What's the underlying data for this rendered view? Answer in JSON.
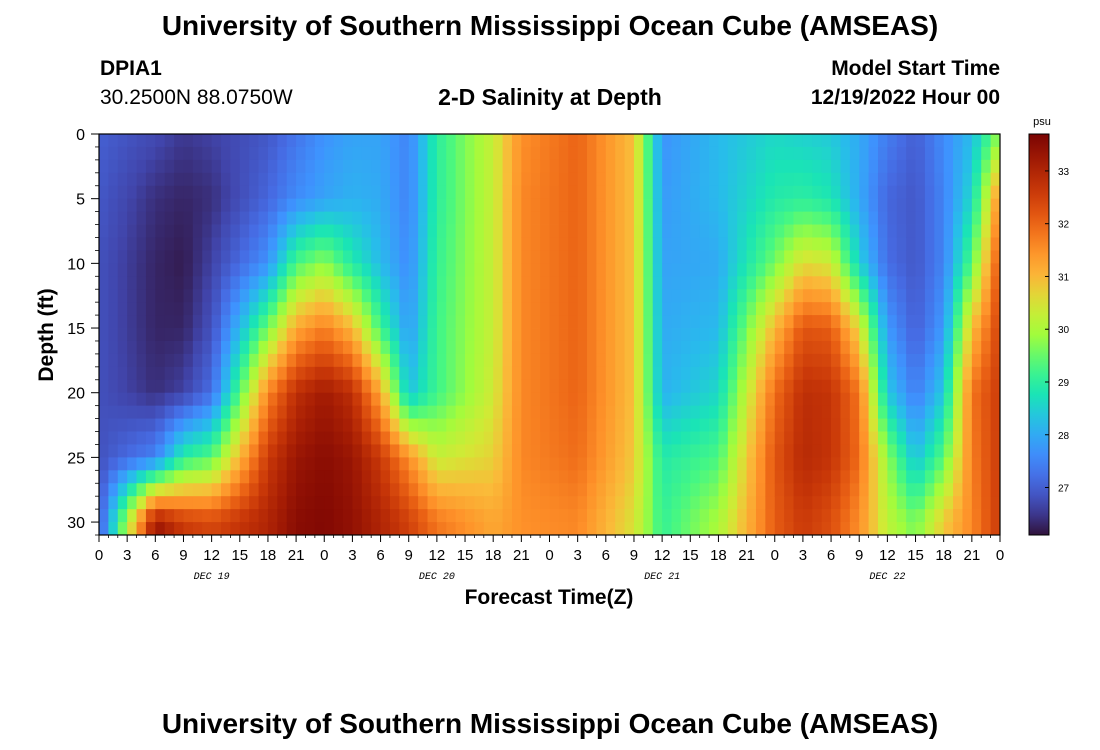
{
  "header": {
    "title": "University of Southern Mississippi Ocean Cube (AMSEAS)",
    "station_id": "DPIA1",
    "station_coords": "30.2500N  88.0750W",
    "subtitle": "2-D Salinity at Depth",
    "model_start_label": "Model Start Time",
    "model_start_value": "12/19/2022 Hour 00"
  },
  "footer": {
    "title": "University of Southern Mississippi Ocean Cube (AMSEAS)"
  },
  "chart_data": {
    "type": "heatmap",
    "title": "2-D Salinity at Depth",
    "xlabel": "Forecast Time(Z)",
    "ylabel": "Depth (ft)",
    "x_tick_labels": [
      "0",
      "3",
      "6",
      "9",
      "12",
      "15",
      "18",
      "21",
      "0",
      "3",
      "6",
      "9",
      "12",
      "15",
      "18",
      "21",
      "0",
      "3",
      "6",
      "9",
      "12",
      "15",
      "18",
      "21",
      "0",
      "3",
      "6",
      "9",
      "12",
      "15",
      "18",
      "21",
      "0"
    ],
    "x_range_hours": [
      0,
      96
    ],
    "day_labels": [
      {
        "text": "DEC 19",
        "hour": 12
      },
      {
        "text": "DEC 20",
        "hour": 36
      },
      {
        "text": "DEC 21",
        "hour": 60
      },
      {
        "text": "DEC 22",
        "hour": 84
      }
    ],
    "y_ticks": [
      0,
      5,
      10,
      15,
      20,
      25,
      30
    ],
    "y_range_ft": [
      0,
      31
    ],
    "colorbar": {
      "label": "psu",
      "range": [
        26.1,
        33.7
      ],
      "ticks": [
        27,
        28,
        29,
        30,
        31,
        32,
        33
      ]
    },
    "depth_samples_ft": [
      0,
      5,
      10,
      15,
      20,
      25,
      30
    ],
    "time_samples_hours": [
      0,
      6,
      9,
      12,
      18,
      21,
      24,
      27,
      30,
      33,
      36,
      42,
      45,
      51,
      57,
      60,
      66,
      72,
      75,
      78,
      81,
      84,
      87,
      90,
      93,
      96
    ],
    "salinity_psu": [
      [
        27.0,
        26.9,
        26.8,
        26.8,
        26.8,
        26.8,
        26.9
      ],
      [
        26.7,
        26.4,
        26.3,
        26.3,
        26.4,
        27.5,
        33.3
      ],
      [
        26.5,
        26.3,
        26.2,
        26.3,
        26.6,
        29.0,
        32.6
      ],
      [
        26.6,
        26.4,
        26.6,
        26.8,
        27.2,
        29.4,
        32.4
      ],
      [
        26.9,
        27.1,
        27.7,
        29.6,
        31.6,
        32.6,
        33.0
      ],
      [
        27.3,
        27.6,
        29.3,
        31.2,
        32.8,
        33.3,
        33.5
      ],
      [
        27.7,
        27.9,
        29.8,
        31.7,
        33.2,
        33.5,
        33.6
      ],
      [
        27.9,
        28.1,
        28.9,
        31.0,
        32.8,
        33.3,
        33.4
      ],
      [
        27.9,
        28.0,
        28.2,
        29.2,
        31.2,
        32.6,
        33.0
      ],
      [
        27.5,
        27.5,
        27.6,
        27.8,
        28.3,
        31.5,
        32.5
      ],
      [
        29.0,
        29.0,
        29.1,
        29.2,
        29.2,
        30.3,
        31.8
      ],
      [
        30.3,
        30.3,
        30.3,
        30.3,
        30.4,
        30.7,
        31.2
      ],
      [
        31.5,
        31.6,
        31.6,
        31.6,
        31.6,
        31.6,
        31.5
      ],
      [
        32.0,
        32.0,
        32.0,
        32.0,
        32.0,
        31.9,
        31.6
      ],
      [
        30.9,
        30.9,
        30.9,
        30.9,
        30.9,
        30.8,
        30.5
      ],
      [
        27.7,
        27.8,
        27.9,
        28.0,
        28.1,
        28.9,
        29.1
      ],
      [
        28.2,
        28.2,
        28.0,
        28.2,
        28.6,
        29.3,
        30.0
      ],
      [
        28.6,
        28.9,
        29.6,
        31.0,
        31.9,
        32.2,
        32.1
      ],
      [
        28.5,
        29.0,
        30.6,
        32.2,
        32.8,
        32.9,
        32.6
      ],
      [
        28.4,
        28.8,
        30.4,
        32.1,
        32.7,
        32.7,
        32.3
      ],
      [
        28.0,
        28.0,
        28.5,
        30.6,
        31.8,
        31.9,
        31.5
      ],
      [
        27.4,
        27.1,
        27.2,
        27.8,
        28.4,
        29.8,
        30.2
      ],
      [
        27.0,
        26.9,
        26.9,
        27.0,
        27.4,
        28.3,
        29.6
      ],
      [
        27.6,
        27.5,
        27.5,
        27.8,
        28.4,
        29.4,
        30.8
      ],
      [
        28.2,
        28.6,
        29.4,
        30.9,
        31.8,
        31.7,
        31.6
      ],
      [
        29.8,
        31.6,
        32.3,
        32.5,
        32.6,
        32.6,
        32.6
      ]
    ]
  }
}
